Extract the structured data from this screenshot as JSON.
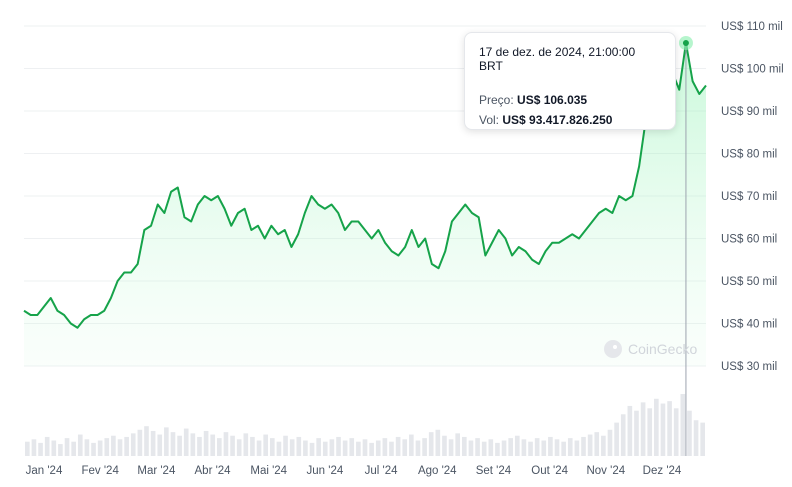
{
  "chart_data": {
    "type": "area",
    "x_labels": [
      "Jan '24",
      "Fev '24",
      "Mar '24",
      "Abr '24",
      "Mai '24",
      "Jun '24",
      "Jul '24",
      "Ago '24",
      "Set '24",
      "Out '24",
      "Nov '24",
      "Dez '24"
    ],
    "y_ticks": [
      {
        "value": 30,
        "label": "US$ 30 mil"
      },
      {
        "value": 40,
        "label": "US$ 40 mil"
      },
      {
        "value": 50,
        "label": "US$ 50 mil"
      },
      {
        "value": 60,
        "label": "US$ 60 mil"
      },
      {
        "value": 70,
        "label": "US$ 70 mil"
      },
      {
        "value": 80,
        "label": "US$ 80 mil"
      },
      {
        "value": 90,
        "label": "US$ 90 mil"
      },
      {
        "value": 100,
        "label": "US$ 100 mil"
      },
      {
        "value": 110,
        "label": "US$ 110 mil"
      }
    ],
    "ylim": [
      30,
      110
    ],
    "y_unit": "thousand USD",
    "grid": true,
    "series": [
      {
        "values": [
          43,
          42,
          42,
          44,
          46,
          43,
          42,
          40,
          39,
          41,
          42,
          42,
          43,
          46,
          50,
          52,
          52,
          54,
          62,
          63,
          68,
          66,
          71,
          72,
          65,
          64,
          68,
          70,
          69,
          70,
          67,
          63,
          66,
          67,
          62,
          63,
          60,
          63,
          61,
          62,
          58,
          61,
          66,
          70,
          68,
          67,
          68,
          66,
          62,
          64,
          64,
          62,
          60,
          62,
          59,
          57,
          56,
          58,
          62,
          58,
          60,
          54,
          53,
          57,
          64,
          66,
          68,
          66,
          65,
          56,
          59,
          62,
          60,
          56,
          58,
          57,
          55,
          54,
          57,
          59,
          59,
          60,
          61,
          60,
          62,
          64,
          66,
          67,
          66,
          70,
          69,
          70,
          77,
          88,
          92,
          97,
          98,
          99,
          95,
          106,
          97,
          94,
          96
        ],
        "color": "#16a34a"
      }
    ],
    "volume": [
      12,
      14,
      11,
      16,
      13,
      10,
      15,
      12,
      18,
      14,
      11,
      13,
      15,
      17,
      14,
      16,
      19,
      22,
      25,
      21,
      18,
      24,
      20,
      17,
      23,
      19,
      16,
      21,
      18,
      15,
      20,
      17,
      14,
      19,
      16,
      13,
      18,
      15,
      12,
      17,
      14,
      16,
      13,
      11,
      15,
      12,
      14,
      16,
      13,
      15,
      12,
      14,
      11,
      13,
      15,
      12,
      16,
      14,
      18,
      13,
      15,
      20,
      22,
      17,
      14,
      19,
      16,
      13,
      15,
      12,
      14,
      11,
      13,
      15,
      17,
      14,
      12,
      15,
      13,
      16,
      14,
      12,
      15,
      13,
      16,
      18,
      20,
      17,
      22,
      28,
      35,
      42,
      38,
      45,
      40,
      48,
      44,
      46,
      40,
      52,
      38,
      30,
      28
    ],
    "tooltip": {
      "date": "17 de dez. de 2024, 21:00:00 BRT",
      "price_label": "Preço:",
      "price_value": "US$ 106.035",
      "vol_label": "Vol:",
      "vol_value": "US$ 93.417.826.250",
      "highlight_index": 99
    }
  },
  "watermark": {
    "text": "CoinGecko"
  },
  "colors": {
    "line": "#16a34a",
    "area": "#bbf7d0",
    "grid": "#eef0f2",
    "axis_text": "#4b5563",
    "volume": "#e5e7eb"
  }
}
